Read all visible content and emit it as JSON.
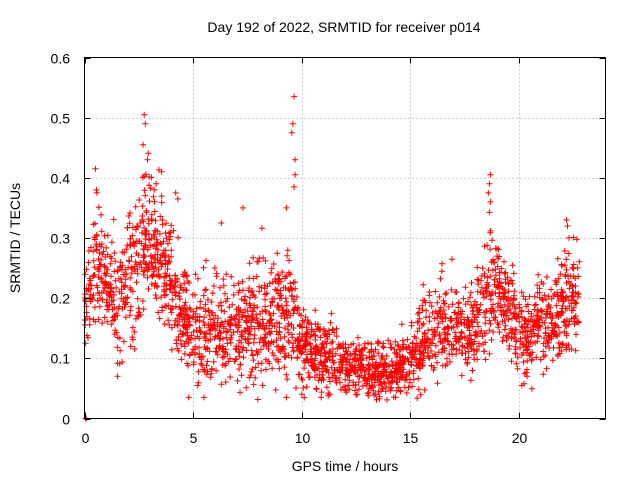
{
  "chart_data": {
    "type": "scatter",
    "title": "Day 192 of 2022, SRMTID for receiver p014",
    "xlabel": "GPS time / hours",
    "ylabel": "SRMTID / TECUs",
    "xlim": [
      0,
      24
    ],
    "ylim": [
      0,
      0.6
    ],
    "grid": true,
    "marker": "+",
    "color": "#ff0000",
    "xticks": [
      {
        "value": 0,
        "label": "0"
      },
      {
        "value": 5,
        "label": "5"
      },
      {
        "value": 10,
        "label": "10"
      },
      {
        "value": 15,
        "label": "15"
      },
      {
        "value": 20,
        "label": "20"
      }
    ],
    "yticks": [
      {
        "value": 0,
        "label": "0"
      },
      {
        "value": 0.1,
        "label": "0.1"
      },
      {
        "value": 0.2,
        "label": "0.2"
      },
      {
        "value": 0.3,
        "label": "0.3"
      },
      {
        "value": 0.4,
        "label": "0.4"
      },
      {
        "value": 0.5,
        "label": "0.5"
      },
      {
        "value": 0.6,
        "label": "0.6"
      }
    ],
    "envelope": {
      "description": "approximate local mean and spread of the point cloud vs time",
      "x": [
        0,
        0.5,
        1.0,
        1.5,
        2.0,
        2.5,
        3.0,
        3.5,
        4.0,
        4.5,
        5.0,
        5.5,
        6.0,
        6.5,
        7.0,
        7.5,
        8.0,
        8.5,
        9.0,
        9.5,
        10.0,
        10.5,
        11.0,
        11.5,
        12.0,
        12.5,
        13.0,
        13.5,
        14.0,
        14.5,
        15.0,
        15.5,
        16.0,
        16.5,
        17.0,
        17.5,
        18.0,
        18.5,
        19.0,
        19.5,
        20.0,
        20.5,
        21.0,
        21.5,
        22.0,
        22.5,
        22.8
      ],
      "mean": [
        0.2,
        0.25,
        0.24,
        0.18,
        0.24,
        0.26,
        0.3,
        0.27,
        0.22,
        0.17,
        0.16,
        0.14,
        0.15,
        0.14,
        0.14,
        0.15,
        0.17,
        0.16,
        0.19,
        0.17,
        0.13,
        0.11,
        0.1,
        0.1,
        0.09,
        0.085,
        0.09,
        0.08,
        0.08,
        0.09,
        0.1,
        0.12,
        0.14,
        0.15,
        0.15,
        0.14,
        0.15,
        0.2,
        0.22,
        0.18,
        0.15,
        0.14,
        0.17,
        0.16,
        0.19,
        0.2,
        0.2
      ],
      "spread": [
        0.05,
        0.07,
        0.06,
        0.06,
        0.07,
        0.08,
        0.09,
        0.07,
        0.06,
        0.06,
        0.06,
        0.06,
        0.06,
        0.06,
        0.06,
        0.06,
        0.07,
        0.06,
        0.08,
        0.07,
        0.05,
        0.04,
        0.035,
        0.035,
        0.03,
        0.03,
        0.03,
        0.03,
        0.03,
        0.03,
        0.035,
        0.045,
        0.05,
        0.05,
        0.05,
        0.05,
        0.05,
        0.07,
        0.06,
        0.05,
        0.05,
        0.05,
        0.06,
        0.05,
        0.06,
        0.06,
        0.05
      ]
    },
    "notable_points": [
      {
        "x": 0.05,
        "y": 0.0
      },
      {
        "x": 0.08,
        "y": 0.0
      },
      {
        "x": 0.5,
        "y": 0.415
      },
      {
        "x": 0.55,
        "y": 0.38
      },
      {
        "x": 2.75,
        "y": 0.505
      },
      {
        "x": 2.8,
        "y": 0.49
      },
      {
        "x": 2.7,
        "y": 0.455
      },
      {
        "x": 2.9,
        "y": 0.43
      },
      {
        "x": 3.55,
        "y": 0.41
      },
      {
        "x": 3.3,
        "y": 0.39
      },
      {
        "x": 4.2,
        "y": 0.375
      },
      {
        "x": 4.3,
        "y": 0.365
      },
      {
        "x": 9.65,
        "y": 0.535
      },
      {
        "x": 9.6,
        "y": 0.49
      },
      {
        "x": 9.55,
        "y": 0.475
      },
      {
        "x": 9.7,
        "y": 0.43
      },
      {
        "x": 9.7,
        "y": 0.405
      },
      {
        "x": 9.65,
        "y": 0.385
      },
      {
        "x": 9.3,
        "y": 0.35
      },
      {
        "x": 7.3,
        "y": 0.35
      },
      {
        "x": 6.3,
        "y": 0.325
      },
      {
        "x": 18.7,
        "y": 0.405
      },
      {
        "x": 18.65,
        "y": 0.39
      },
      {
        "x": 18.6,
        "y": 0.375
      },
      {
        "x": 18.7,
        "y": 0.36
      },
      {
        "x": 22.2,
        "y": 0.33
      },
      {
        "x": 22.25,
        "y": 0.32
      },
      {
        "x": 4.8,
        "y": 0.035
      },
      {
        "x": 5.5,
        "y": 0.035
      },
      {
        "x": 9.3,
        "y": 0.035
      },
      {
        "x": 10.9,
        "y": 0.035
      },
      {
        "x": 11.3,
        "y": 0.04
      },
      {
        "x": 13.2,
        "y": 0.05
      }
    ]
  }
}
